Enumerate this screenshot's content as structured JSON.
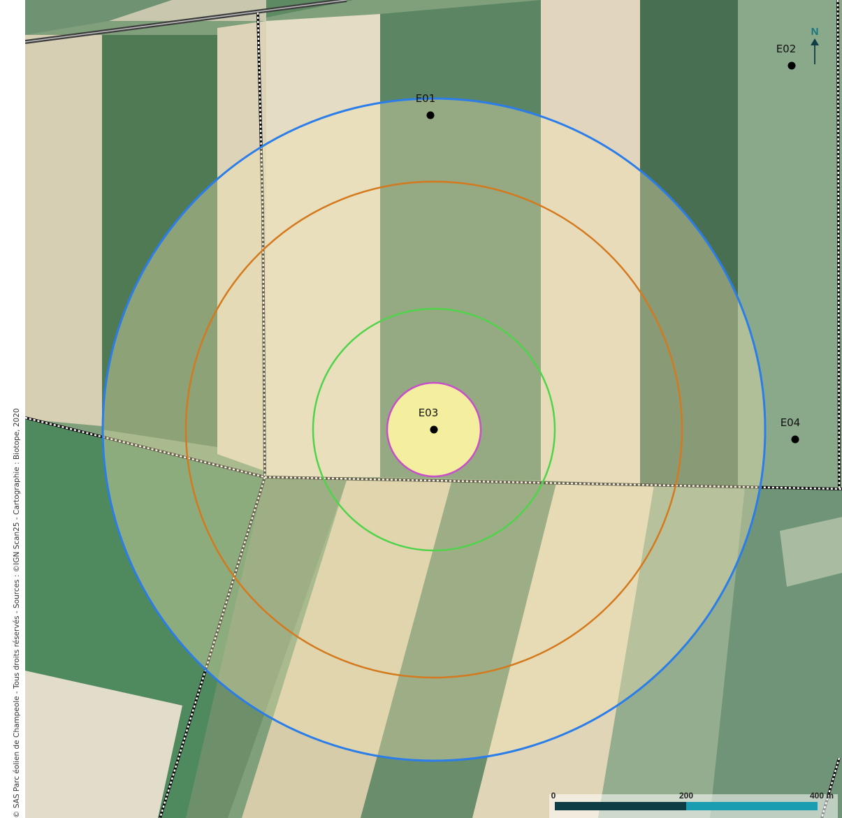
{
  "map": {
    "credit": "© SAS Parc éolien de Champeole - Tous droits réservés - Sources : ©IGN Scan25 - Cartographie : Biotope, 2020",
    "turbines": [
      {
        "id": "E01"
      },
      {
        "id": "E02"
      },
      {
        "id": "E03"
      },
      {
        "id": "E04"
      }
    ],
    "buffer_rings": [
      {
        "color": "#2b7de9"
      },
      {
        "color": "#d4791d"
      },
      {
        "color": "#4fd34a"
      },
      {
        "color": "#c94ec9",
        "fill": "#f3ef9e"
      }
    ],
    "north_arrow": {
      "label": "N",
      "color": "#18767f"
    },
    "scale_bar": {
      "labels": [
        "0",
        "200",
        "400 m"
      ],
      "colors": [
        "#0f3d45",
        "#1a9db0"
      ]
    }
  }
}
